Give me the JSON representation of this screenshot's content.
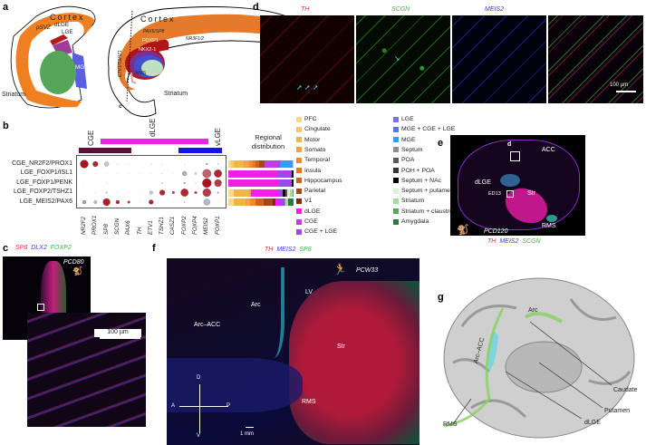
{
  "panels": {
    "a": {
      "label": "a",
      "cortex_left": "Cortex",
      "cortex_right": "Cortex",
      "psvz": "pSVZ",
      "dlge": "dLGE",
      "lge": "LGE",
      "mge": "MGE",
      "striatum_left": "Striatum",
      "striatum_right": "Striatum",
      "pax6": "PAX6/SP8",
      "foxp1": "FOXP1",
      "nkx21": "NKX2-1",
      "nr3f": "NR3F1/2",
      "etv1": "ETV1/TSHZ1",
      "rms": "RMS",
      "cut": "c"
    },
    "b": {
      "label": "b",
      "group_cge": "CGE",
      "group_dlge": "dLGE",
      "group_vlge": "vLGE",
      "regional_title": "Regional distribution",
      "rows": [
        "CGE_NR2F2/PROX1",
        "LGE_FOXP1/ISL1",
        "LGE_FOXP1/PENK",
        "LGE_FOXP2/TSHZ1",
        "LGE_MEIS2/PAX6"
      ],
      "genes": [
        "NR2F2",
        "PROX1",
        "SP8",
        "SCGN",
        "PAX6",
        "TH",
        "ETV1",
        "TSHZ1",
        "CASZ1",
        "FOXP2",
        "FOXP4",
        "MEIS2",
        "FOXP1"
      ],
      "dot_size": [
        [
          0.9,
          0.6,
          0.5,
          0.1,
          0.1,
          0,
          0.1,
          0.1,
          0,
          0.05,
          0,
          0.2,
          0.15
        ],
        [
          0.05,
          0.05,
          0.05,
          0.05,
          0.05,
          0,
          0.05,
          0.1,
          0.05,
          0.5,
          0.3,
          0.95,
          0.85
        ],
        [
          0.05,
          0.05,
          0.1,
          0.05,
          0.05,
          0,
          0.05,
          0.15,
          0.05,
          0.2,
          0.1,
          1.0,
          0.8
        ],
        [
          0.05,
          0.1,
          0.2,
          0.05,
          0.05,
          0,
          0.35,
          0.6,
          0.3,
          0.85,
          0.3,
          0.9,
          0.2
        ],
        [
          0.4,
          0.35,
          0.8,
          0.4,
          0.3,
          0.05,
          0.5,
          0.05,
          0.05,
          0.15,
          0.1,
          0.7,
          0.05
        ]
      ],
      "dot_expr": [
        [
          1,
          0.9,
          -0.2,
          0.3,
          0.3,
          0,
          0.3,
          0.3,
          0,
          0.3,
          0,
          -1,
          0.3
        ],
        [
          0,
          0,
          0,
          0,
          0,
          0,
          0,
          0.3,
          0,
          -0.5,
          -0.2,
          0.6,
          0.9
        ],
        [
          0,
          0,
          0.3,
          0,
          0,
          0,
          0,
          0.4,
          0,
          0.5,
          0.3,
          1,
          0.8
        ],
        [
          0,
          0.2,
          -0.5,
          0,
          0,
          0,
          -0.2,
          0.9,
          0.8,
          0.9,
          0.8,
          0.8,
          0.5
        ],
        [
          -0.6,
          -0.3,
          0.95,
          0.9,
          0.8,
          0,
          0.9,
          0,
          0,
          -0.6,
          0,
          -0.4,
          0
        ]
      ],
      "legend": [
        {
          "name": "PFC",
          "color": "#f8d98c"
        },
        {
          "name": "Cingulate",
          "color": "#f5c86c"
        },
        {
          "name": "Motor",
          "color": "#f1b545"
        },
        {
          "name": "Somato",
          "color": "#f3a046"
        },
        {
          "name": "Temporal",
          "color": "#ee8a30"
        },
        {
          "name": "Insula",
          "color": "#e4762b"
        },
        {
          "name": "Hippocampus",
          "color": "#cc6220"
        },
        {
          "name": "Parietal",
          "color": "#a4481a"
        },
        {
          "name": "V1",
          "color": "#7b2b10"
        },
        {
          "name": "dLGE",
          "color": "#f21fe4"
        },
        {
          "name": "CGE",
          "color": "#c33ee0"
        },
        {
          "name": "CGE + LGE",
          "color": "#9d46f0"
        },
        {
          "name": "LGE",
          "color": "#7b70ef"
        },
        {
          "name": "MGE + CGE + LGE",
          "color": "#5b72f0"
        },
        {
          "name": "MGE",
          "color": "#3a9cf0"
        },
        {
          "name": "Septum",
          "color": "#8e8e8e"
        },
        {
          "name": "POA",
          "color": "#5a5a5a"
        },
        {
          "name": "POH + POA",
          "color": "#333333"
        },
        {
          "name": "Septum + NAc",
          "color": "#000000"
        },
        {
          "name": "Septum + putamen",
          "color": "#dcefd8"
        },
        {
          "name": "Striatum",
          "color": "#a9d9a1"
        },
        {
          "name": "Striatum + claustrum",
          "color": "#4cae5c"
        },
        {
          "name": "Amygdala",
          "color": "#2a7a42"
        }
      ],
      "regional": [
        {
          "PFC": 0.04,
          "Cingulate": 0.04,
          "Motor": 0.16,
          "Somato": 0.08,
          "Temporal": 0.05,
          "Insula": 0.04,
          "Hippocampus": 0.06,
          "Parietal": 0.08,
          "CGE": 0.2,
          "CGE + LGE": 0.04,
          "MGE": 0.2,
          "Striatum": 0.01
        },
        {
          "dLGE": 0.75,
          "CGE + LGE": 0.22,
          "Septum + NAc": 0.03
        },
        {
          "dLGE": 0.78,
          "CGE + LGE": 0.19,
          "Septum + NAc": 0.03
        },
        {
          "PFC": 0.08,
          "Motor": 0.24,
          "Somato": 0.03,
          "dLGE": 0.43,
          "CGE + LGE": 0.06,
          "Septum + NAc": 0.04,
          "POA": 0.02,
          "Septum + putamen": 0.05,
          "Striatum": 0.03,
          "Striatum + claustrum": 0.02
        },
        {
          "PFC": 0.08,
          "Motor": 0.18,
          "Somato": 0.08,
          "Temporal": 0.08,
          "Hippocampus": 0.12,
          "Parietal": 0.14,
          "V1": 0.04,
          "dLGE": 0.06,
          "CGE + LGE": 0.08,
          "Septum": 0.02,
          "Striatum": 0.04,
          "Amygdala": 0.08
        }
      ]
    },
    "c": {
      "label": "c",
      "genes": [
        {
          "name": "SP8",
          "color": "#e8343c"
        },
        {
          "name": "DLX2",
          "color": "#3a3ae0"
        },
        {
          "name": "FOXP2",
          "color": "#3cb44a"
        }
      ],
      "age": "PCD80",
      "scale": "100 µm"
    },
    "d": {
      "label": "d",
      "channels": [
        {
          "name": "TH",
          "color": "#e8343c"
        },
        {
          "name": "SCGN",
          "color": "#3cb44a"
        },
        {
          "name": "MEIS2",
          "color": "#3a3ae0"
        }
      ],
      "scale": "100 µm"
    },
    "e": {
      "label": "e",
      "box": "d",
      "acc": "ACC",
      "dlge": "dLGE",
      "ed13": "ED13",
      "str": "Str",
      "rms": "RMS",
      "age": "PCD120",
      "genes": [
        {
          "name": "TH",
          "color": "#e8343c"
        },
        {
          "name": "MEIS2",
          "color": "#3a3ae0"
        },
        {
          "name": "SCGN",
          "color": "#3cb44a"
        }
      ]
    },
    "f": {
      "label": "f",
      "genes": [
        {
          "name": "TH",
          "color": "#e8343c"
        },
        {
          "name": "MEIS2",
          "color": "#3a3ae0"
        },
        {
          "name": "SP8",
          "color": "#3cb44a"
        }
      ],
      "age": "PCW33",
      "lv": "LV",
      "arc": "Arc",
      "arc_acc": "Arc–ACC",
      "str": "Str",
      "rms": "RMS",
      "d": "D",
      "v": "V",
      "a": "A",
      "p": "P",
      "scale": "1 mm"
    },
    "g": {
      "label": "g",
      "arc": "Arc",
      "arc_acc": "Arc–ACC",
      "caudate": "Caudate",
      "putamen": "Putamen",
      "dlge": "dLGE",
      "rms": "RMS"
    }
  }
}
